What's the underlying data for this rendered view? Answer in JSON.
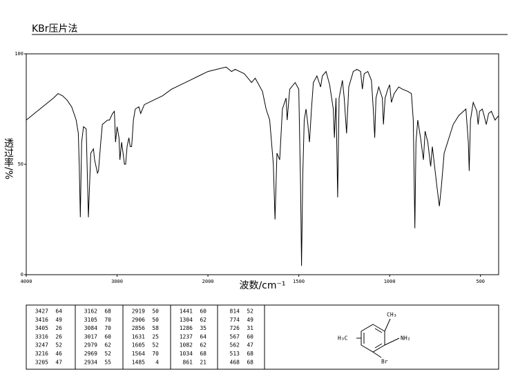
{
  "title": "KBr压片法",
  "chart_data": {
    "type": "line",
    "color": "#000000",
    "xlabel": "波数/cm⁻¹",
    "ylabel": "透过率/%",
    "xlim": [
      4000,
      400
    ],
    "xticks": [
      4000,
      3000,
      2000,
      1500,
      1000,
      500
    ],
    "xscale_break": 2000,
    "ylim": [
      0,
      100
    ],
    "yticks": [
      0,
      50,
      100
    ],
    "x": [
      4000,
      3700,
      3650,
      3600,
      3550,
      3500,
      3450,
      3427,
      3416,
      3405,
      3390,
      3370,
      3340,
      3316,
      3290,
      3260,
      3247,
      3216,
      3205,
      3180,
      3162,
      3105,
      3084,
      3050,
      3030,
      3017,
      3000,
      2979,
      2969,
      2950,
      2934,
      2919,
      2906,
      2890,
      2870,
      2856,
      2840,
      2820,
      2800,
      2760,
      2740,
      2700,
      2600,
      2500,
      2400,
      2300,
      2200,
      2100,
      2000,
      1950,
      1900,
      1870,
      1850,
      1800,
      1780,
      1760,
      1740,
      1700,
      1680,
      1660,
      1640,
      1631,
      1620,
      1605,
      1590,
      1570,
      1564,
      1550,
      1520,
      1500,
      1490,
      1485,
      1478,
      1470,
      1460,
      1450,
      1441,
      1430,
      1420,
      1400,
      1380,
      1370,
      1350,
      1330,
      1310,
      1304,
      1295,
      1286,
      1278,
      1260,
      1250,
      1237,
      1225,
      1200,
      1180,
      1160,
      1150,
      1140,
      1120,
      1100,
      1090,
      1082,
      1075,
      1060,
      1040,
      1034,
      1025,
      1010,
      1000,
      990,
      975,
      950,
      930,
      900,
      880,
      870,
      861,
      855,
      845,
      830,
      814,
      805,
      790,
      774,
      765,
      740,
      726,
      715,
      700,
      650,
      620,
      580,
      567,
      562,
      555,
      540,
      520,
      513,
      505,
      490,
      480,
      468,
      455,
      440,
      420,
      400
    ],
    "values": [
      70,
      80,
      82,
      81,
      79,
      76,
      70,
      64,
      49,
      26,
      60,
      67,
      66,
      26,
      55,
      57,
      52,
      46,
      47,
      60,
      68,
      70,
      70,
      73,
      74,
      60,
      67,
      62,
      52,
      60,
      55,
      50,
      50,
      58,
      62,
      58,
      58,
      70,
      75,
      76,
      73,
      77,
      79,
      81,
      84,
      86,
      88,
      90,
      92,
      93,
      94,
      92,
      93,
      91,
      89,
      87,
      89,
      83,
      75,
      70,
      50,
      25,
      55,
      52,
      75,
      80,
      70,
      84,
      87,
      84,
      40,
      4,
      45,
      70,
      75,
      68,
      60,
      75,
      87,
      90,
      85,
      90,
      92,
      86,
      75,
      62,
      80,
      35,
      80,
      88,
      80,
      64,
      85,
      92,
      93,
      92,
      84,
      91,
      92,
      88,
      75,
      62,
      80,
      85,
      80,
      68,
      80,
      84,
      86,
      78,
      82,
      85,
      84,
      83,
      82,
      70,
      21,
      60,
      70,
      62,
      52,
      65,
      60,
      49,
      58,
      40,
      31,
      40,
      55,
      68,
      72,
      75,
      60,
      47,
      70,
      78,
      74,
      68,
      74,
      75,
      72,
      68,
      73,
      74,
      70,
      72
    ]
  },
  "peak_table": [
    [
      [
        "3427",
        "64"
      ],
      [
        "3416",
        "49"
      ],
      [
        "3405",
        "26"
      ],
      [
        "3316",
        "26"
      ],
      [
        "3247",
        "52"
      ],
      [
        "3216",
        "46"
      ],
      [
        "3205",
        "47"
      ]
    ],
    [
      [
        "3162",
        "68"
      ],
      [
        "3105",
        "70"
      ],
      [
        "3084",
        "70"
      ],
      [
        "3017",
        "60"
      ],
      [
        "2979",
        "62"
      ],
      [
        "2969",
        "52"
      ],
      [
        "2934",
        "55"
      ]
    ],
    [
      [
        "2919",
        "50"
      ],
      [
        "2906",
        "50"
      ],
      [
        "2856",
        "58"
      ],
      [
        "1631",
        "25"
      ],
      [
        "1605",
        "52"
      ],
      [
        "1564",
        "70"
      ],
      [
        "1485",
        "4"
      ]
    ],
    [
      [
        "1441",
        "60"
      ],
      [
        "1304",
        "62"
      ],
      [
        "1286",
        "35"
      ],
      [
        "1237",
        "64"
      ],
      [
        "1082",
        "62"
      ],
      [
        "1034",
        "68"
      ],
      [
        "861",
        "21"
      ]
    ],
    [
      [
        "814",
        "52"
      ],
      [
        "774",
        "49"
      ],
      [
        "726",
        "31"
      ],
      [
        "567",
        "60"
      ],
      [
        "562",
        "47"
      ],
      [
        "513",
        "68"
      ],
      [
        "468",
        "68"
      ]
    ]
  ],
  "structure": {
    "labels": [
      "CH₃",
      "NH₂",
      "H₃C",
      "Br"
    ]
  }
}
